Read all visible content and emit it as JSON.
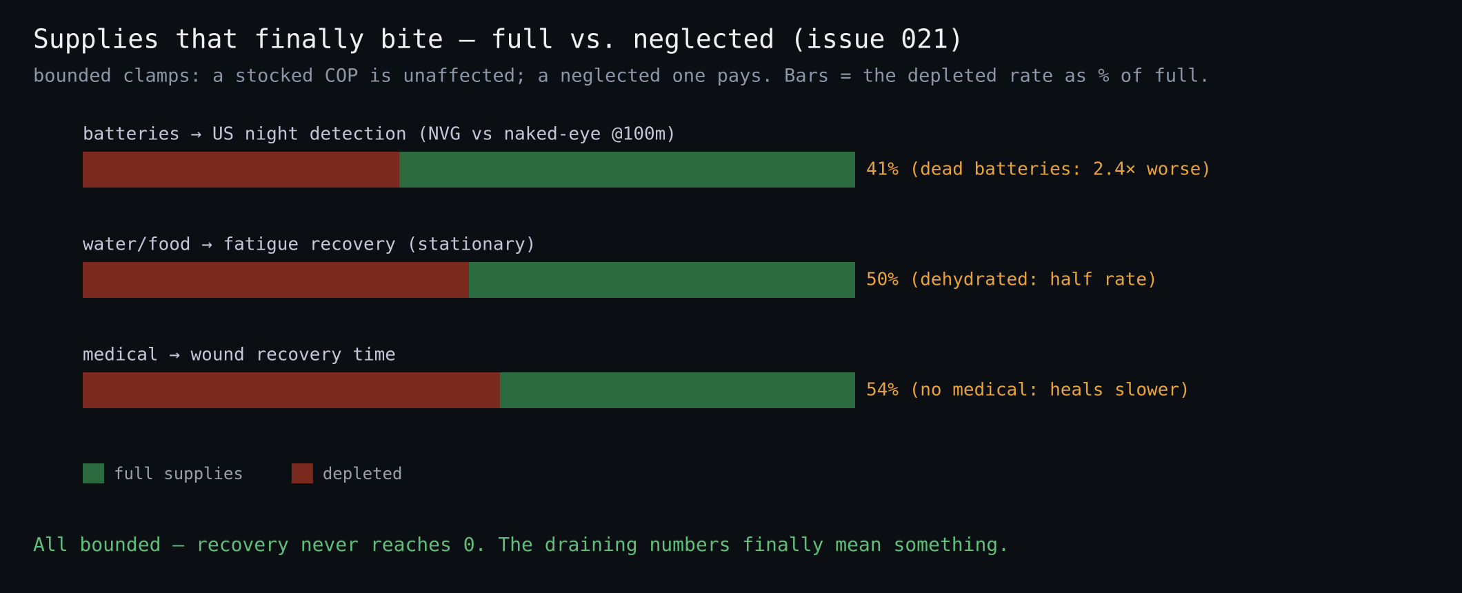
{
  "chart_data": {
    "type": "bar",
    "title": "Supplies that finally bite — full vs. neglected (issue 021)",
    "subtitle": "bounded clamps: a stocked COP is unaffected; a neglected one pays. Bars = the depleted rate as % of full.",
    "categories": [
      "batteries → US night detection (NVG vs naked-eye @100m)",
      "water/food → fatigue recovery (stationary)",
      "medical → wound recovery time"
    ],
    "series": [
      {
        "name": "full supplies",
        "color": "#2c6b40",
        "values": [
          100,
          100,
          100
        ]
      },
      {
        "name": "depleted",
        "color": "#7a2a1e",
        "values": [
          41,
          50,
          54
        ],
        "value_labels": [
          "41% (dead batteries: 2.4× worse)",
          "50% (dehydrated: half rate)",
          "54% (no medical: heals slower)"
        ]
      }
    ],
    "xlim": [
      0,
      100
    ],
    "annotation": "All bounded — recovery never reaches 0. The draining numbers finally mean something."
  }
}
